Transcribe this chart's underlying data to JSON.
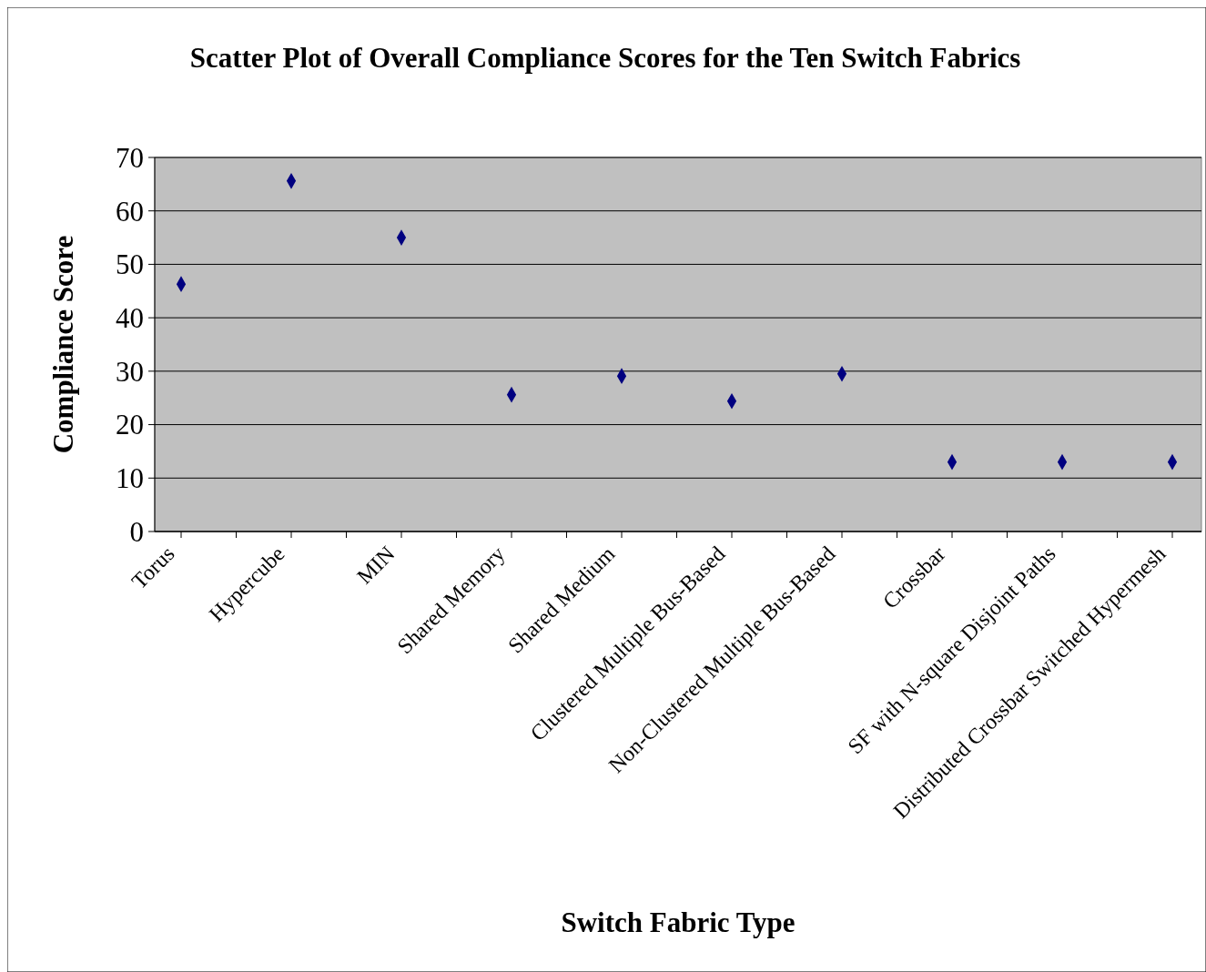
{
  "chart_data": {
    "type": "scatter",
    "title": "Scatter Plot of Overall Compliance Scores for the Ten Switch Fabrics",
    "xlabel": "Switch Fabric Type",
    "ylabel": "Compliance Score",
    "categories": [
      "Torus",
      "Hypercube",
      "MIN",
      "Shared Memory",
      "Shared Medium",
      "Clustered Multiple Bus-Based",
      "Non-Clustered Multiple Bus-Based",
      "Crossbar",
      "SF with N-square Disjoint Paths",
      "Distributed Crossbar Switched Hypermesh"
    ],
    "series": [
      {
        "color": "#000080",
        "values": [
          46.3,
          65.6,
          55,
          25.6,
          29.1,
          24.4,
          29.5,
          13,
          13,
          13
        ]
      }
    ],
    "ylim": [
      0,
      70
    ],
    "yticks": [
      0,
      10,
      20,
      30,
      40,
      50,
      60,
      70
    ],
    "grid": "y",
    "marker": "diamond"
  }
}
